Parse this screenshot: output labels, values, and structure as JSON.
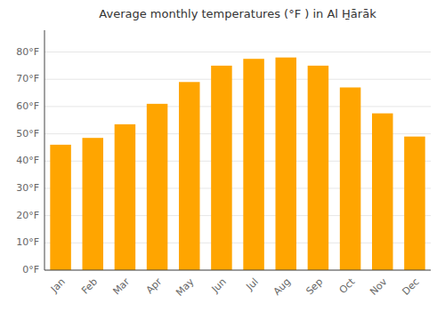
{
  "chart_data": {
    "type": "bar",
    "title": "Average monthly temperatures (°F ) in Al Ḥ̱ārāk",
    "categories": [
      "Jan",
      "Feb",
      "Mar",
      "Apr",
      "May",
      "Jun",
      "Jul",
      "Aug",
      "Sep",
      "Oct",
      "Nov",
      "Dec"
    ],
    "values": [
      46.0,
      48.5,
      53.5,
      61.0,
      69.0,
      75.0,
      77.5,
      78.0,
      75.0,
      67.0,
      57.5,
      49.0
    ],
    "color": "#FFA500",
    "ylim": [
      0,
      88
    ],
    "yticks": [
      {
        "value": 0,
        "label": "0°F"
      },
      {
        "value": 10,
        "label": "10°F"
      },
      {
        "value": 20,
        "label": "20°F"
      },
      {
        "value": 30,
        "label": "30°F"
      },
      {
        "value": 40,
        "label": "40°F"
      },
      {
        "value": 50,
        "label": "50°F"
      },
      {
        "value": 60,
        "label": "60°F"
      },
      {
        "value": 70,
        "label": "70°F"
      },
      {
        "value": 80,
        "label": "80°F"
      }
    ],
    "grid": true
  }
}
